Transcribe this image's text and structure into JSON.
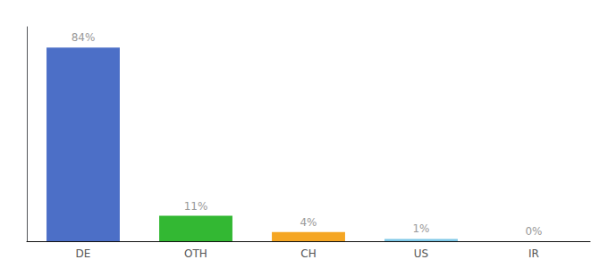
{
  "chart_data": {
    "type": "bar",
    "categories": [
      "DE",
      "OTH",
      "CH",
      "US",
      "IR"
    ],
    "values": [
      84,
      11,
      4,
      1,
      0
    ],
    "value_labels": [
      "84%",
      "11%",
      "4%",
      "1%",
      "0%"
    ],
    "data_labels": true,
    "colors": [
      "#4c6fc7",
      "#33b833",
      "#f5a623",
      "#7ec8e8",
      "#7ec8e8"
    ],
    "ylim": [
      0,
      93
    ],
    "grid": false,
    "tick_labels": "x"
  }
}
